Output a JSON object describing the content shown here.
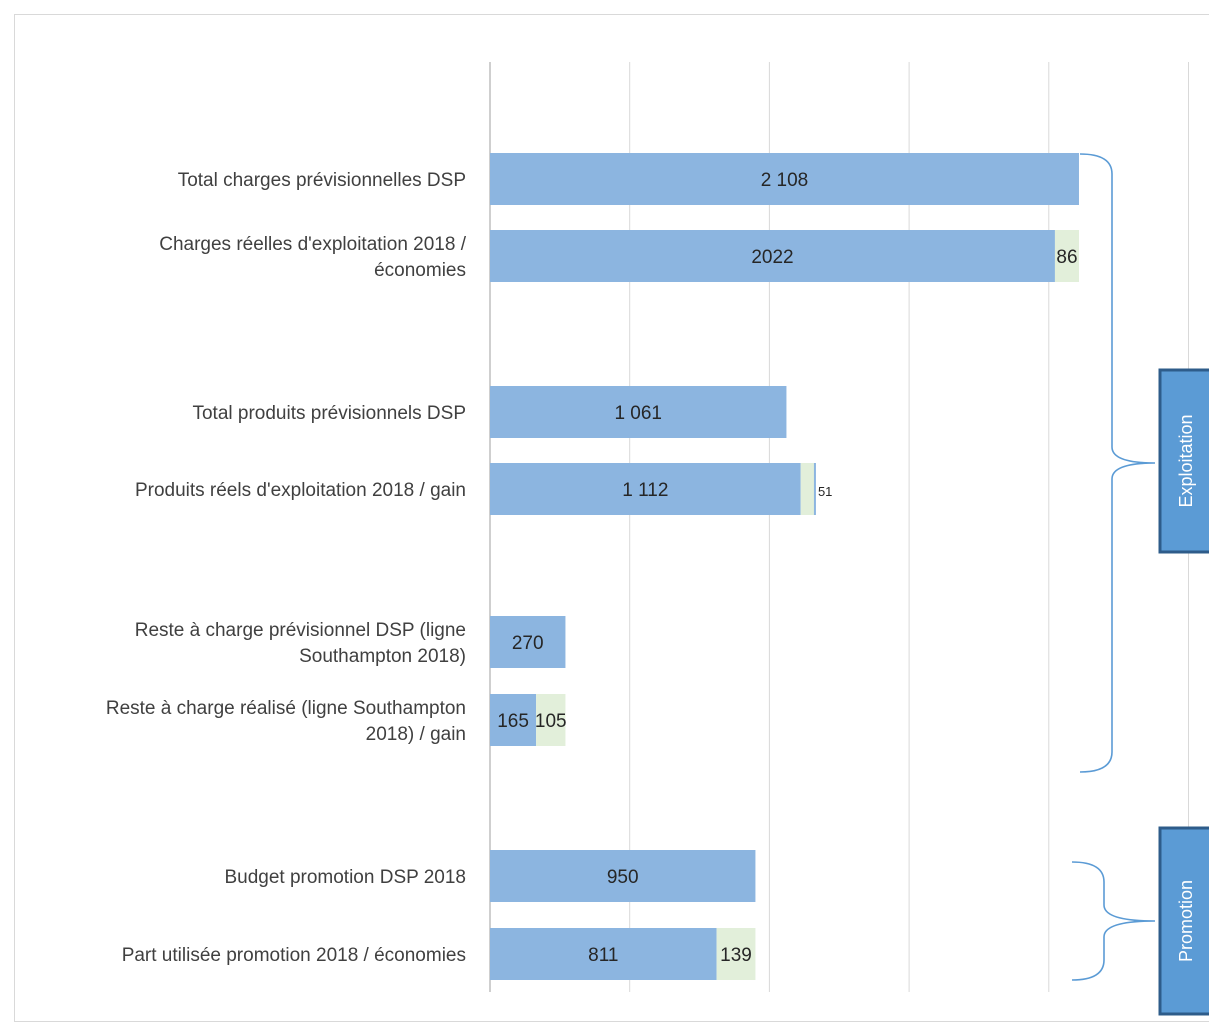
{
  "chart_data": {
    "type": "bar",
    "orientation": "horizontal",
    "stacked": true,
    "grid": true,
    "xlim": [
      0,
      2500
    ],
    "rows": [
      {
        "label": [
          "Total charges prévisionnelles DSP"
        ],
        "values": [
          2108
        ],
        "labels": [
          "2 108"
        ]
      },
      {
        "label": [
          "Charges réelles d'exploitation 2018 /",
          "économies"
        ],
        "values": [
          2022,
          86
        ],
        "labels": [
          "2022",
          "86"
        ]
      },
      {
        "label": [
          "Total produits prévisionnels DSP"
        ],
        "values": [
          1061
        ],
        "labels": [
          "1 061"
        ]
      },
      {
        "label": [
          "Produits réels d'exploitation 2018 / gain"
        ],
        "values": [
          1112,
          51
        ],
        "labels": [
          "1 112",
          "51"
        ]
      },
      {
        "label": [
          "Reste à charge prévisionnel DSP (ligne",
          "Southampton 2018)"
        ],
        "values": [
          270
        ],
        "labels": [
          "270"
        ]
      },
      {
        "label": [
          "Reste à charge réalisé (ligne Southampton",
          "2018) / gain"
        ],
        "values": [
          165,
          105
        ],
        "labels": [
          "165",
          "105"
        ]
      },
      {
        "label": [
          "Budget promotion DSP 2018"
        ],
        "values": [
          950
        ],
        "labels": [
          "950"
        ]
      },
      {
        "label": [
          "Part utilisée promotion 2018 / économies"
        ],
        "values": [
          811,
          139
        ],
        "labels": [
          "811",
          "139"
        ]
      }
    ],
    "groups": [
      {
        "name": "Exploitation",
        "rows": [
          0,
          5
        ]
      },
      {
        "name": "Promotion",
        "rows": [
          6,
          7
        ]
      }
    ],
    "colors": {
      "primary": "#8cb5e0",
      "secondary": "#e2efda",
      "secondary_stroke": "#a9d18e",
      "grid": "#d9d9d9",
      "axis": "#bfbfbf",
      "brace": "#5b9bd5",
      "group_box": "#5b9bd5",
      "group_box_border": "#2e5c8a"
    }
  }
}
